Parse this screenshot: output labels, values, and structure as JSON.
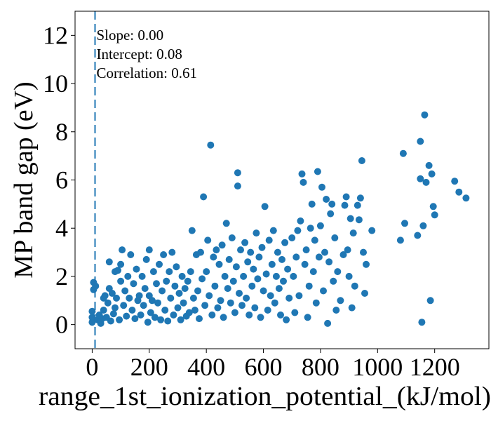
{
  "chart_data": {
    "type": "scatter",
    "xlabel": "range_1st_ionization_potential_(kJ/mol)",
    "ylabel": "MP band gap (eV)",
    "xlim": [
      -60,
      1390
    ],
    "ylim": [
      -1,
      13
    ],
    "xticks": [
      0,
      200,
      400,
      600,
      800,
      1000,
      1200
    ],
    "xtick_labels": [
      "0",
      "200",
      "400",
      "600",
      "800",
      "1000",
      "1200"
    ],
    "yticks": [
      0,
      2,
      4,
      6,
      8,
      10,
      12
    ],
    "ytick_labels": [
      "0",
      "2",
      "4",
      "6",
      "8",
      "10",
      "12"
    ],
    "point_color": "#1f77b4",
    "fit_line": {
      "slope": 0.0,
      "intercept": 0.08,
      "x_position": 10,
      "style": "dashed"
    },
    "annotations": [
      "Slope: 0.00",
      "Intercept: 0.08",
      "Correlation: 0.61"
    ],
    "points": [
      [
        0,
        0.1
      ],
      [
        0,
        0.3
      ],
      [
        0,
        0.55
      ],
      [
        5,
        1.45
      ],
      [
        5,
        1.75
      ],
      [
        12,
        1.6
      ],
      [
        20,
        0.2
      ],
      [
        25,
        0.4
      ],
      [
        30,
        0.05
      ],
      [
        35,
        0.25
      ],
      [
        40,
        0.6
      ],
      [
        40,
        1.1
      ],
      [
        45,
        1.2
      ],
      [
        50,
        0.3
      ],
      [
        55,
        0.9
      ],
      [
        60,
        1.5
      ],
      [
        60,
        2.6
      ],
      [
        65,
        0.15
      ],
      [
        70,
        1.3
      ],
      [
        75,
        0.45
      ],
      [
        80,
        2.2
      ],
      [
        80,
        0.7
      ],
      [
        85,
        1.1
      ],
      [
        90,
        2.25
      ],
      [
        95,
        0.2
      ],
      [
        100,
        1.8
      ],
      [
        100,
        2.5
      ],
      [
        105,
        3.1
      ],
      [
        110,
        0.8
      ],
      [
        115,
        1.4
      ],
      [
        120,
        0.35
      ],
      [
        125,
        2.0
      ],
      [
        130,
        1.1
      ],
      [
        135,
        2.9
      ],
      [
        140,
        0.6
      ],
      [
        145,
        1.7
      ],
      [
        150,
        0.25
      ],
      [
        155,
        2.3
      ],
      [
        160,
        1.0
      ],
      [
        165,
        1.2
      ],
      [
        170,
        0.4
      ],
      [
        175,
        2.0
      ],
      [
        180,
        0.8
      ],
      [
        185,
        1.5
      ],
      [
        190,
        2.7
      ],
      [
        195,
        0.1
      ],
      [
        200,
        3.1
      ],
      [
        200,
        1.2
      ],
      [
        205,
        0.5
      ],
      [
        210,
        1.0
      ],
      [
        215,
        2.2
      ],
      [
        220,
        0.3
      ],
      [
        225,
        1.7
      ],
      [
        230,
        0.9
      ],
      [
        235,
        2.5
      ],
      [
        240,
        0.2
      ],
      [
        245,
        1.4
      ],
      [
        250,
        2.9
      ],
      [
        255,
        0.6
      ],
      [
        260,
        1.8
      ],
      [
        265,
        0.15
      ],
      [
        270,
        2.2
      ],
      [
        275,
        1.1
      ],
      [
        280,
        3.0
      ],
      [
        285,
        0.4
      ],
      [
        290,
        1.6
      ],
      [
        295,
        2.4
      ],
      [
        300,
        0.7
      ],
      [
        305,
        1.3
      ],
      [
        310,
        0.2
      ],
      [
        315,
        2.0
      ],
      [
        320,
        0.9
      ],
      [
        325,
        1.5
      ],
      [
        330,
        0.35
      ],
      [
        335,
        1.8
      ],
      [
        340,
        0.5
      ],
      [
        345,
        2.2
      ],
      [
        350,
        3.9
      ],
      [
        355,
        1.1
      ],
      [
        360,
        0.6
      ],
      [
        365,
        2.9
      ],
      [
        370,
        1.4
      ],
      [
        375,
        0.25
      ],
      [
        380,
        3.0
      ],
      [
        385,
        1.9
      ],
      [
        390,
        5.3
      ],
      [
        395,
        0.8
      ],
      [
        400,
        2.2
      ],
      [
        405,
        3.5
      ],
      [
        410,
        1.2
      ],
      [
        415,
        7.45
      ],
      [
        420,
        0.4
      ],
      [
        425,
        2.8
      ],
      [
        430,
        1.6
      ],
      [
        435,
        3.1
      ],
      [
        440,
        0.7
      ],
      [
        445,
        2.5
      ],
      [
        450,
        1.0
      ],
      [
        455,
        3.3
      ],
      [
        460,
        0.3
      ],
      [
        465,
        2.0
      ],
      [
        470,
        4.2
      ],
      [
        475,
        1.5
      ],
      [
        480,
        2.7
      ],
      [
        485,
        0.9
      ],
      [
        490,
        3.6
      ],
      [
        495,
        1.8
      ],
      [
        500,
        0.5
      ],
      [
        505,
        2.4
      ],
      [
        510,
        6.3
      ],
      [
        510,
        5.75
      ],
      [
        515,
        1.3
      ],
      [
        520,
        3.1
      ],
      [
        525,
        0.8
      ],
      [
        530,
        2.0
      ],
      [
        535,
        3.4
      ],
      [
        540,
        1.1
      ],
      [
        545,
        2.6
      ],
      [
        550,
        0.4
      ],
      [
        555,
        3.0
      ],
      [
        560,
        1.6
      ],
      [
        565,
        2.3
      ],
      [
        570,
        0.7
      ],
      [
        575,
        3.8
      ],
      [
        580,
        1.9
      ],
      [
        585,
        2.8
      ],
      [
        590,
        0.3
      ],
      [
        595,
        3.2
      ],
      [
        600,
        1.4
      ],
      [
        605,
        4.9
      ],
      [
        610,
        2.1
      ],
      [
        615,
        0.6
      ],
      [
        620,
        3.5
      ],
      [
        625,
        1.2
      ],
      [
        630,
        2.5
      ],
      [
        635,
        3.9
      ],
      [
        640,
        0.9
      ],
      [
        645,
        2.0
      ],
      [
        650,
        3.0
      ],
      [
        655,
        1.5
      ],
      [
        660,
        0.4
      ],
      [
        665,
        2.7
      ],
      [
        670,
        1.8
      ],
      [
        675,
        3.4
      ],
      [
        680,
        0.2
      ],
      [
        685,
        2.3
      ],
      [
        690,
        1.1
      ],
      [
        700,
        3.6
      ],
      [
        705,
        2.0
      ],
      [
        710,
        0.5
      ],
      [
        715,
        2.8
      ],
      [
        720,
        3.9
      ],
      [
        725,
        1.2
      ],
      [
        730,
        4.3
      ],
      [
        735,
        6.25
      ],
      [
        740,
        5.9
      ],
      [
        745,
        2.5
      ],
      [
        750,
        3.1
      ],
      [
        755,
        0.3
      ],
      [
        760,
        1.6
      ],
      [
        765,
        4.0
      ],
      [
        770,
        5.0
      ],
      [
        775,
        2.2
      ],
      [
        780,
        3.5
      ],
      [
        785,
        0.9
      ],
      [
        790,
        6.35
      ],
      [
        795,
        2.8
      ],
      [
        800,
        4.1
      ],
      [
        805,
        5.7
      ],
      [
        810,
        1.4
      ],
      [
        815,
        3.0
      ],
      [
        820,
        5.2
      ],
      [
        825,
        0.05
      ],
      [
        830,
        2.6
      ],
      [
        835,
        4.6
      ],
      [
        840,
        5.0
      ],
      [
        845,
        1.8
      ],
      [
        850,
        3.6
      ],
      [
        855,
        0.6
      ],
      [
        860,
        2.2
      ],
      [
        870,
        1.0
      ],
      [
        880,
        2.9
      ],
      [
        885,
        4.95
      ],
      [
        890,
        5.3
      ],
      [
        895,
        3.1
      ],
      [
        900,
        2.0
      ],
      [
        905,
        4.4
      ],
      [
        910,
        0.7
      ],
      [
        915,
        3.8
      ],
      [
        920,
        1.6
      ],
      [
        930,
        4.95
      ],
      [
        935,
        4.35
      ],
      [
        940,
        5.25
      ],
      [
        945,
        6.8
      ],
      [
        950,
        3.0
      ],
      [
        955,
        1.3
      ],
      [
        960,
        2.5
      ],
      [
        980,
        3.9
      ],
      [
        1080,
        3.5
      ],
      [
        1090,
        7.1
      ],
      [
        1095,
        4.2
      ],
      [
        1140,
        3.7
      ],
      [
        1150,
        6.05
      ],
      [
        1150,
        7.6
      ],
      [
        1155,
        0.1
      ],
      [
        1160,
        4.1
      ],
      [
        1165,
        8.7
      ],
      [
        1170,
        5.9
      ],
      [
        1180,
        6.6
      ],
      [
        1185,
        1.0
      ],
      [
        1190,
        6.25
      ],
      [
        1195,
        4.9
      ],
      [
        1200,
        4.55
      ],
      [
        1270,
        5.95
      ],
      [
        1285,
        5.5
      ],
      [
        1310,
        5.25
      ]
    ]
  }
}
